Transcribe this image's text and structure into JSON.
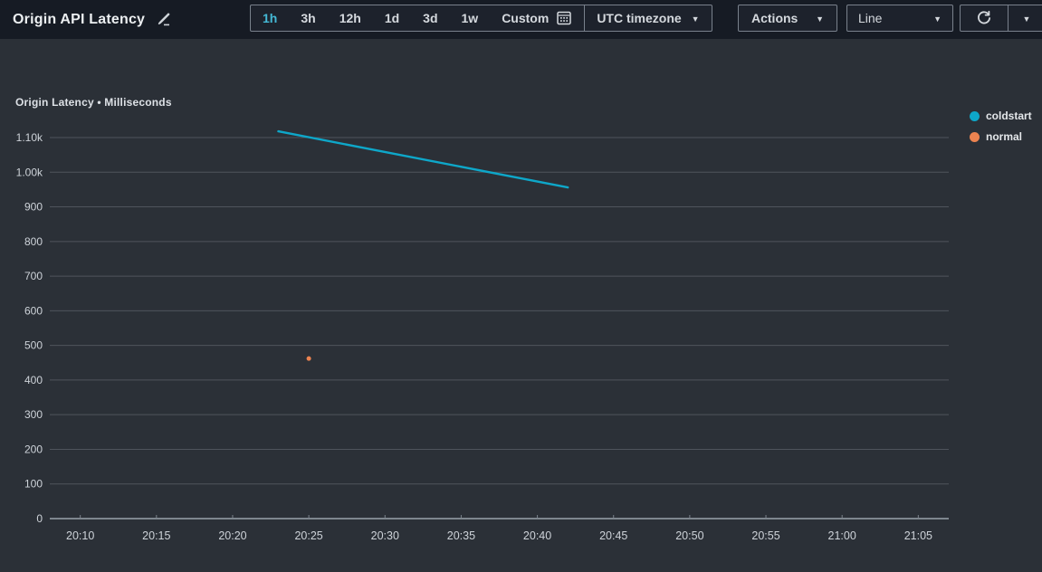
{
  "window": {
    "title": "Origin API Latency"
  },
  "toolbar": {
    "time_ranges": [
      {
        "label": "1h",
        "selected": true
      },
      {
        "label": "3h",
        "selected": false
      },
      {
        "label": "12h",
        "selected": false
      },
      {
        "label": "1d",
        "selected": false
      },
      {
        "label": "3d",
        "selected": false
      },
      {
        "label": "1w",
        "selected": false
      },
      {
        "label": "Custom",
        "selected": false
      }
    ],
    "timezone": {
      "label": "UTC timezone"
    },
    "actions": {
      "label": "Actions"
    },
    "chart_type": {
      "value": "Line"
    }
  },
  "chart": {
    "header": "Origin Latency • Milliseconds"
  },
  "colors": {
    "accent": "#44b9d6",
    "coldstart": "#0ea7c9",
    "normal": "#ec8350",
    "grid": "#4f545c",
    "axis": "#9aa2ab",
    "tick": "#7b838c",
    "topbar_bg": "#161b24",
    "panel_bg": "#2b3037"
  },
  "chart_data": {
    "type": "line",
    "title": "Origin Latency",
    "ylabel": "Milliseconds",
    "grid": "horizontal",
    "legend_position": "right",
    "ylim": [
      0,
      1145
    ],
    "yticks": [
      {
        "value": 0,
        "label": "0"
      },
      {
        "value": 100,
        "label": "100"
      },
      {
        "value": 200,
        "label": "200"
      },
      {
        "value": 300,
        "label": "300"
      },
      {
        "value": 400,
        "label": "400"
      },
      {
        "value": 500,
        "label": "500"
      },
      {
        "value": 600,
        "label": "600"
      },
      {
        "value": 700,
        "label": "700"
      },
      {
        "value": 800,
        "label": "800"
      },
      {
        "value": 900,
        "label": "900"
      },
      {
        "value": 1000,
        "label": "1.00k"
      },
      {
        "value": 1100,
        "label": "1.10k"
      }
    ],
    "x_domain": [
      "20:08",
      "21:07"
    ],
    "xticks": [
      "20:10",
      "20:15",
      "20:20",
      "20:25",
      "20:30",
      "20:35",
      "20:40",
      "20:45",
      "20:50",
      "20:55",
      "21:00",
      "21:05"
    ],
    "series": [
      {
        "name": "coldstart",
        "color": "#0ea7c9",
        "points": [
          {
            "x": "20:23",
            "y": 1118
          },
          {
            "x": "20:42",
            "y": 956
          }
        ]
      },
      {
        "name": "normal",
        "color": "#ec8350",
        "points": [
          {
            "x": "20:25",
            "y": 462
          }
        ]
      }
    ]
  }
}
